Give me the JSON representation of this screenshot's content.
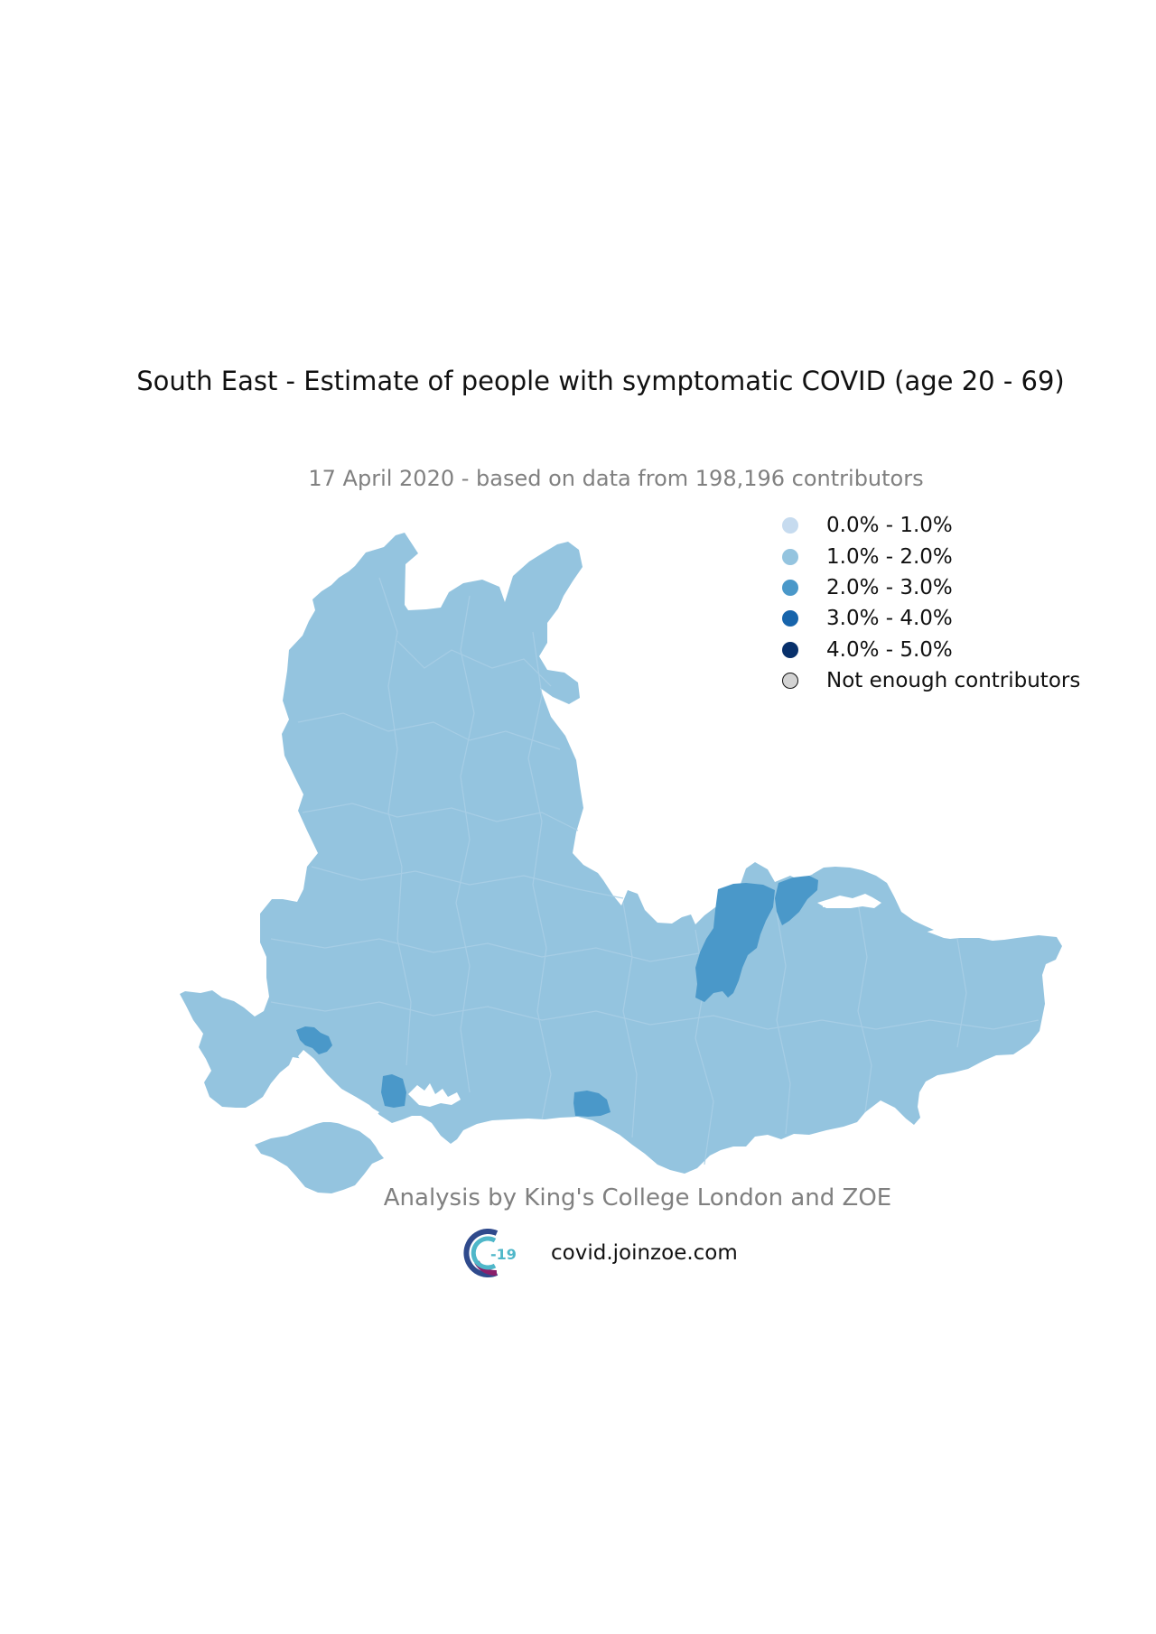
{
  "title": "South East - Estimate of people with symptomatic COVID (age 20 - 69)",
  "subtitle": "17 April 2020 - based on data from 198,196 contributors",
  "legend": [
    {
      "label": "0.0% - 1.0%",
      "color": "#c6dbef"
    },
    {
      "label": "1.0% - 2.0%",
      "color": "#94c4df"
    },
    {
      "label": "2.0% - 3.0%",
      "color": "#4a98c9"
    },
    {
      "label": "3.0% - 4.0%",
      "color": "#1764ab"
    },
    {
      "label": "4.0% - 5.0%",
      "color": "#08306b"
    },
    {
      "label": "Not enough contributors",
      "color": "#d3d3d3"
    }
  ],
  "map": {
    "region": "South East",
    "base_color": "#94c4df",
    "border_color": "#a9cfe6",
    "highlight_color": "#4a98c9"
  },
  "credit": "Analysis by King's College London and ZOE",
  "footer": {
    "logo_text": "-19",
    "url": "covid.joinzoe.com"
  }
}
